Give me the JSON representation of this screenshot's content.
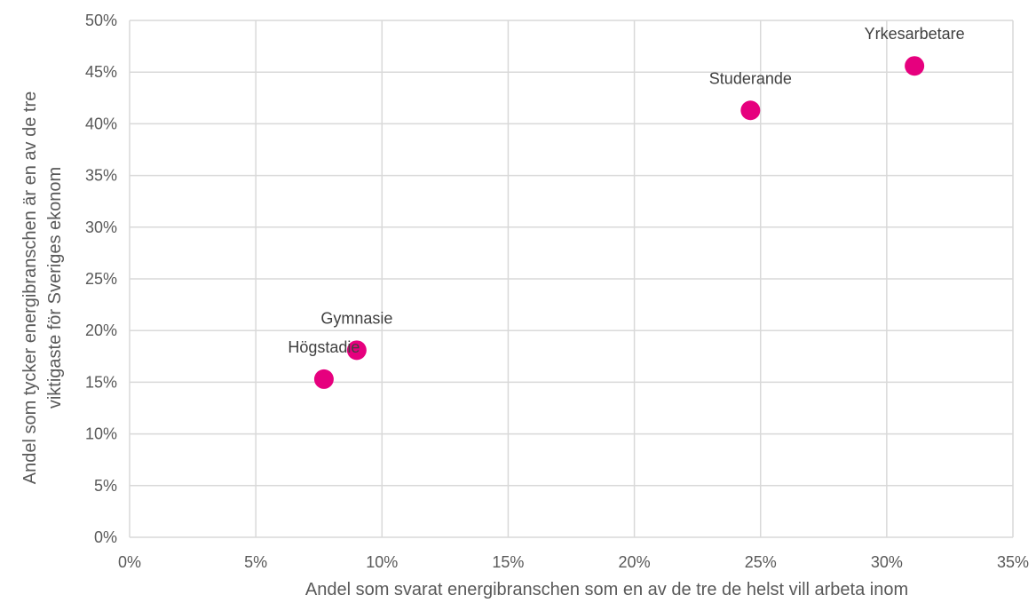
{
  "chart_data": {
    "type": "scatter",
    "title": "",
    "xlabel": "Andel som svarat energibranschen som en av de tre de helst vill arbeta inom",
    "ylabel": "Andel som tycker energibranschen är en av de tre viktigaste för Sveriges ekonom",
    "ylabel_lines": [
      "Andel som tycker energibranschen är en av de tre",
      "viktigaste för Sveriges ekonom"
    ],
    "xlim": [
      0,
      35
    ],
    "ylim": [
      0,
      50
    ],
    "x_ticks": [
      {
        "value": 0,
        "label": "0%"
      },
      {
        "value": 5,
        "label": "5%"
      },
      {
        "value": 10,
        "label": "10%"
      },
      {
        "value": 15,
        "label": "15%"
      },
      {
        "value": 20,
        "label": "20%"
      },
      {
        "value": 25,
        "label": "25%"
      },
      {
        "value": 30,
        "label": "30%"
      },
      {
        "value": 35,
        "label": "35%"
      }
    ],
    "y_ticks": [
      {
        "value": 0,
        "label": "0%"
      },
      {
        "value": 5,
        "label": "5%"
      },
      {
        "value": 10,
        "label": "10%"
      },
      {
        "value": 15,
        "label": "15%"
      },
      {
        "value": 20,
        "label": "20%"
      },
      {
        "value": 25,
        "label": "25%"
      },
      {
        "value": 30,
        "label": "30%"
      },
      {
        "value": 35,
        "label": "35%"
      },
      {
        "value": 40,
        "label": "40%"
      },
      {
        "value": 45,
        "label": "45%"
      },
      {
        "value": 50,
        "label": "50%"
      }
    ],
    "grid": true,
    "legend": "none",
    "marker_color": "#e6007e",
    "points": [
      {
        "label": "Högstadie",
        "x": 7.7,
        "y": 15.3
      },
      {
        "label": "Gymnasie",
        "x": 9.0,
        "y": 18.1
      },
      {
        "label": "Studerande",
        "x": 24.6,
        "y": 41.3
      },
      {
        "label": "Yrkesarbetare",
        "x": 31.1,
        "y": 45.6
      }
    ]
  }
}
